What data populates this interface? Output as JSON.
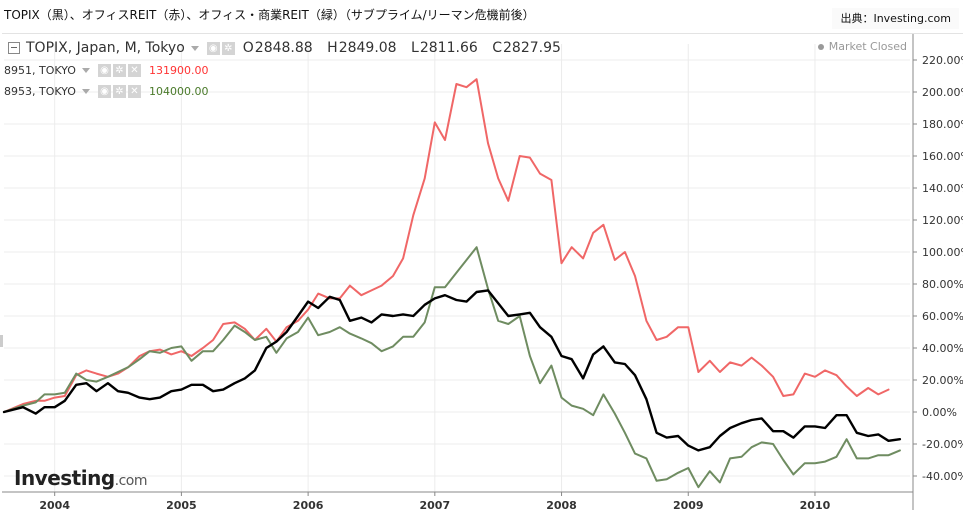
{
  "header": {
    "title": "TOPIX（黒）、オフィスREIT（赤）、オフィス・商業REIT（緑）（サブプライム/リーマン危機前後）",
    "source": "出典：Investing.com"
  },
  "legend": {
    "main": {
      "label": "TOPIX, Japan, M, Tokyo",
      "ohlc": [
        {
          "k": "O",
          "v": "2848.88"
        },
        {
          "k": "H",
          "v": "2849.08"
        },
        {
          "k": "L",
          "v": "2811.66"
        },
        {
          "k": "C",
          "v": "2827.95"
        }
      ]
    },
    "sub1": {
      "label": "8951, TOKYO",
      "value": "131900.00"
    },
    "sub2": {
      "label": "8953, TOKYO",
      "value": "104000.00"
    }
  },
  "market_status": "Market Closed",
  "logo": {
    "main": "Investing",
    "suffix": ".com"
  },
  "colors": {
    "red": "#f06767",
    "green": "#6f8c61",
    "black": "#000000",
    "axis": "#888888",
    "grid": "#ececec"
  },
  "chart_data": {
    "type": "line",
    "title": "TOPIX（黒）、オフィスREIT（赤）、オフィス・商業REIT（緑）（サブプライム/リーマン危機前後）",
    "xlabel": "",
    "ylabel": "",
    "x_unit": "year (decimal)",
    "xlim": [
      2003.6,
      2010.75
    ],
    "ylim": [
      -50,
      230
    ],
    "x_ticks": [
      2004,
      2005,
      2006,
      2007,
      2008,
      2009,
      2010
    ],
    "x_tick_labels": [
      "2004",
      "2005",
      "2006",
      "2007",
      "2008",
      "2009",
      "2010"
    ],
    "y_ticks": [
      -40,
      -20,
      0,
      20,
      40,
      60,
      80,
      100,
      120,
      140,
      160,
      180,
      200,
      220
    ],
    "y_tick_labels": [
      "-40.00%",
      "-20.00%",
      "0.00%",
      "20.00%",
      "40.00%",
      "60.00%",
      "80.00%",
      "100.00%",
      "120.00%",
      "140.00%",
      "160.00%",
      "180.00%",
      "200.00%",
      "220.00%"
    ],
    "series": [
      {
        "name": "TOPIX",
        "color": "#000000",
        "points": [
          [
            2003.6,
            0
          ],
          [
            2003.75,
            3
          ],
          [
            2003.85,
            -1
          ],
          [
            2003.92,
            3
          ],
          [
            2004.0,
            3
          ],
          [
            2004.08,
            7
          ],
          [
            2004.17,
            17
          ],
          [
            2004.25,
            18
          ],
          [
            2004.33,
            13
          ],
          [
            2004.42,
            18
          ],
          [
            2004.5,
            13
          ],
          [
            2004.58,
            12
          ],
          [
            2004.67,
            9
          ],
          [
            2004.75,
            8
          ],
          [
            2004.83,
            9
          ],
          [
            2004.92,
            13
          ],
          [
            2005.0,
            14
          ],
          [
            2005.08,
            17
          ],
          [
            2005.17,
            17
          ],
          [
            2005.25,
            13
          ],
          [
            2005.33,
            14
          ],
          [
            2005.42,
            18
          ],
          [
            2005.5,
            21
          ],
          [
            2005.58,
            26
          ],
          [
            2005.67,
            40
          ],
          [
            2005.75,
            44
          ],
          [
            2005.83,
            50
          ],
          [
            2005.92,
            60
          ],
          [
            2006.0,
            69
          ],
          [
            2006.08,
            65
          ],
          [
            2006.17,
            72
          ],
          [
            2006.25,
            70
          ],
          [
            2006.33,
            57
          ],
          [
            2006.42,
            59
          ],
          [
            2006.5,
            56
          ],
          [
            2006.58,
            61
          ],
          [
            2006.67,
            60
          ],
          [
            2006.75,
            61
          ],
          [
            2006.83,
            60
          ],
          [
            2006.92,
            67
          ],
          [
            2007.0,
            71
          ],
          [
            2007.08,
            73
          ],
          [
            2007.17,
            70
          ],
          [
            2007.25,
            69
          ],
          [
            2007.33,
            75
          ],
          [
            2007.42,
            76
          ],
          [
            2007.5,
            68
          ],
          [
            2007.58,
            60
          ],
          [
            2007.67,
            61
          ],
          [
            2007.75,
            62
          ],
          [
            2007.83,
            53
          ],
          [
            2007.92,
            47
          ],
          [
            2008.0,
            35
          ],
          [
            2008.08,
            33
          ],
          [
            2008.17,
            21
          ],
          [
            2008.25,
            36
          ],
          [
            2008.33,
            41
          ],
          [
            2008.42,
            31
          ],
          [
            2008.5,
            30
          ],
          [
            2008.58,
            23
          ],
          [
            2008.67,
            8
          ],
          [
            2008.75,
            -13
          ],
          [
            2008.83,
            -16
          ],
          [
            2008.92,
            -15
          ],
          [
            2009.0,
            -21
          ],
          [
            2009.08,
            -24
          ],
          [
            2009.17,
            -22
          ],
          [
            2009.25,
            -15
          ],
          [
            2009.33,
            -10
          ],
          [
            2009.42,
            -7
          ],
          [
            2009.5,
            -5
          ],
          [
            2009.58,
            -4
          ],
          [
            2009.67,
            -12
          ],
          [
            2009.75,
            -12
          ],
          [
            2009.83,
            -16
          ],
          [
            2009.92,
            -9
          ],
          [
            2010.0,
            -9
          ],
          [
            2010.08,
            -10
          ],
          [
            2010.17,
            -2
          ],
          [
            2010.25,
            -2
          ],
          [
            2010.33,
            -13
          ],
          [
            2010.42,
            -15
          ],
          [
            2010.5,
            -14
          ],
          [
            2010.58,
            -18
          ],
          [
            2010.67,
            -17
          ]
        ]
      },
      {
        "name": "8951, TOKYO",
        "color": "#f06767",
        "points": [
          [
            2003.6,
            0
          ],
          [
            2003.75,
            5
          ],
          [
            2003.85,
            7
          ],
          [
            2003.92,
            7
          ],
          [
            2004.0,
            9
          ],
          [
            2004.08,
            10
          ],
          [
            2004.17,
            23
          ],
          [
            2004.25,
            26
          ],
          [
            2004.33,
            24
          ],
          [
            2004.42,
            22
          ],
          [
            2004.5,
            24
          ],
          [
            2004.58,
            28
          ],
          [
            2004.67,
            35
          ],
          [
            2004.75,
            38
          ],
          [
            2004.83,
            39
          ],
          [
            2004.92,
            36
          ],
          [
            2005.0,
            38
          ],
          [
            2005.08,
            35
          ],
          [
            2005.17,
            40
          ],
          [
            2005.25,
            45
          ],
          [
            2005.33,
            55
          ],
          [
            2005.42,
            56
          ],
          [
            2005.5,
            52
          ],
          [
            2005.58,
            45
          ],
          [
            2005.67,
            52
          ],
          [
            2005.75,
            44
          ],
          [
            2005.83,
            53
          ],
          [
            2005.92,
            57
          ],
          [
            2006.0,
            64
          ],
          [
            2006.08,
            74
          ],
          [
            2006.17,
            71
          ],
          [
            2006.25,
            71
          ],
          [
            2006.33,
            79
          ],
          [
            2006.42,
            73
          ],
          [
            2006.5,
            76
          ],
          [
            2006.58,
            79
          ],
          [
            2006.67,
            85
          ],
          [
            2006.75,
            96
          ],
          [
            2006.83,
            123
          ],
          [
            2006.92,
            146
          ],
          [
            2007.0,
            181
          ],
          [
            2007.08,
            170
          ],
          [
            2007.17,
            205
          ],
          [
            2007.25,
            203
          ],
          [
            2007.33,
            208
          ],
          [
            2007.42,
            168
          ],
          [
            2007.5,
            146
          ],
          [
            2007.58,
            132
          ],
          [
            2007.67,
            160
          ],
          [
            2007.75,
            159
          ],
          [
            2007.83,
            149
          ],
          [
            2007.92,
            145
          ],
          [
            2008.0,
            93
          ],
          [
            2008.08,
            103
          ],
          [
            2008.17,
            96
          ],
          [
            2008.25,
            112
          ],
          [
            2008.33,
            117
          ],
          [
            2008.42,
            95
          ],
          [
            2008.5,
            100
          ],
          [
            2008.58,
            85
          ],
          [
            2008.67,
            57
          ],
          [
            2008.75,
            45
          ],
          [
            2008.83,
            47
          ],
          [
            2008.92,
            53
          ],
          [
            2009.0,
            53
          ],
          [
            2009.08,
            25
          ],
          [
            2009.17,
            32
          ],
          [
            2009.25,
            25
          ],
          [
            2009.33,
            31
          ],
          [
            2009.42,
            29
          ],
          [
            2009.5,
            34
          ],
          [
            2009.58,
            29
          ],
          [
            2009.67,
            22
          ],
          [
            2009.75,
            10
          ],
          [
            2009.83,
            11
          ],
          [
            2009.92,
            24
          ],
          [
            2010.0,
            22
          ],
          [
            2010.08,
            26
          ],
          [
            2010.17,
            23
          ],
          [
            2010.25,
            16
          ],
          [
            2010.33,
            10
          ],
          [
            2010.42,
            15
          ],
          [
            2010.5,
            11
          ],
          [
            2010.58,
            14
          ]
        ]
      },
      {
        "name": "8953, TOKYO",
        "color": "#6f8c61",
        "points": [
          [
            2003.6,
            0
          ],
          [
            2003.75,
            4
          ],
          [
            2003.85,
            6
          ],
          [
            2003.92,
            11
          ],
          [
            2004.0,
            11
          ],
          [
            2004.08,
            12
          ],
          [
            2004.17,
            24
          ],
          [
            2004.25,
            20
          ],
          [
            2004.33,
            19
          ],
          [
            2004.42,
            22
          ],
          [
            2004.5,
            25
          ],
          [
            2004.58,
            28
          ],
          [
            2004.67,
            33
          ],
          [
            2004.75,
            38
          ],
          [
            2004.83,
            37
          ],
          [
            2004.92,
            40
          ],
          [
            2005.0,
            41
          ],
          [
            2005.08,
            32
          ],
          [
            2005.17,
            38
          ],
          [
            2005.25,
            38
          ],
          [
            2005.33,
            45
          ],
          [
            2005.42,
            54
          ],
          [
            2005.5,
            50
          ],
          [
            2005.58,
            45
          ],
          [
            2005.67,
            47
          ],
          [
            2005.75,
            37
          ],
          [
            2005.83,
            46
          ],
          [
            2005.92,
            50
          ],
          [
            2006.0,
            59
          ],
          [
            2006.08,
            48
          ],
          [
            2006.17,
            50
          ],
          [
            2006.25,
            53
          ],
          [
            2006.33,
            49
          ],
          [
            2006.42,
            46
          ],
          [
            2006.5,
            43
          ],
          [
            2006.58,
            38
          ],
          [
            2006.67,
            41
          ],
          [
            2006.75,
            47
          ],
          [
            2006.83,
            47
          ],
          [
            2006.92,
            56
          ],
          [
            2007.0,
            78
          ],
          [
            2007.08,
            78
          ],
          [
            2007.17,
            87
          ],
          [
            2007.25,
            95
          ],
          [
            2007.33,
            103
          ],
          [
            2007.42,
            77
          ],
          [
            2007.5,
            57
          ],
          [
            2007.58,
            55
          ],
          [
            2007.67,
            60
          ],
          [
            2007.75,
            35
          ],
          [
            2007.83,
            18
          ],
          [
            2007.92,
            29
          ],
          [
            2008.0,
            9
          ],
          [
            2008.08,
            4
          ],
          [
            2008.17,
            2
          ],
          [
            2008.25,
            -2
          ],
          [
            2008.33,
            11
          ],
          [
            2008.42,
            -1
          ],
          [
            2008.5,
            -13
          ],
          [
            2008.58,
            -26
          ],
          [
            2008.67,
            -29
          ],
          [
            2008.75,
            -43
          ],
          [
            2008.83,
            -42
          ],
          [
            2008.92,
            -38
          ],
          [
            2009.0,
            -35
          ],
          [
            2009.08,
            -47
          ],
          [
            2009.17,
            -37
          ],
          [
            2009.25,
            -44
          ],
          [
            2009.33,
            -29
          ],
          [
            2009.42,
            -28
          ],
          [
            2009.5,
            -22
          ],
          [
            2009.58,
            -19
          ],
          [
            2009.67,
            -20
          ],
          [
            2009.75,
            -30
          ],
          [
            2009.83,
            -39
          ],
          [
            2009.92,
            -32
          ],
          [
            2010.0,
            -32
          ],
          [
            2010.08,
            -31
          ],
          [
            2010.17,
            -28
          ],
          [
            2010.25,
            -17
          ],
          [
            2010.33,
            -29
          ],
          [
            2010.42,
            -29
          ],
          [
            2010.5,
            -27
          ],
          [
            2010.58,
            -27
          ],
          [
            2010.67,
            -24
          ]
        ]
      }
    ]
  }
}
